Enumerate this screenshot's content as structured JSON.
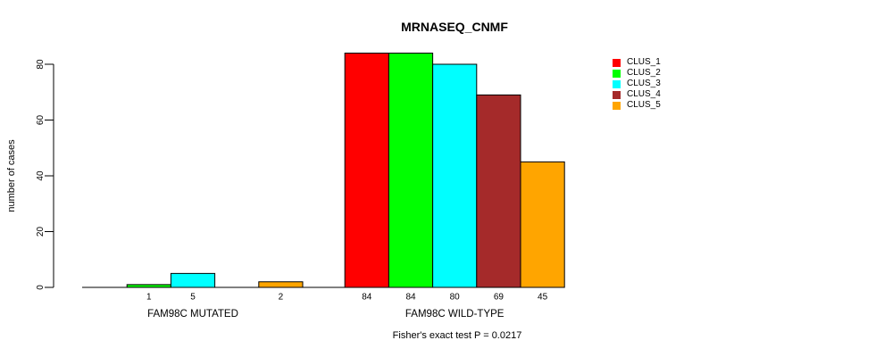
{
  "title": "MRNASEQ_CNMF",
  "chart_data": {
    "type": "bar",
    "title": "MRNASEQ_CNMF",
    "xlabel": "",
    "ylabel": "number of cases",
    "ylim": [
      0,
      80
    ],
    "yticks": [
      0,
      20,
      40,
      60,
      80
    ],
    "grid": false,
    "legend_position": "top-right",
    "categories": [
      "FAM98C MUTATED",
      "FAM98C WILD-TYPE"
    ],
    "series": [
      {
        "name": "CLUS_1",
        "color": "#FF0000",
        "values": [
          0,
          84
        ]
      },
      {
        "name": "CLUS_2",
        "color": "#00FF00",
        "values": [
          1,
          84
        ]
      },
      {
        "name": "CLUS_3",
        "color": "#00FFFF",
        "values": [
          5,
          80
        ]
      },
      {
        "name": "CLUS_4",
        "color": "#A52A2A",
        "values": [
          0,
          69
        ]
      },
      {
        "name": "CLUS_5",
        "color": "#FFA500",
        "values": [
          2,
          45
        ]
      }
    ],
    "bar_value_labels": {
      "mutated": [
        1,
        5,
        2
      ],
      "wild_type": [
        84,
        84,
        80,
        69,
        45
      ]
    },
    "zero_value_bars_unlabeled": true,
    "axis_color": "#000000",
    "annotation": "Fisher's exact test P = 0.0217"
  }
}
